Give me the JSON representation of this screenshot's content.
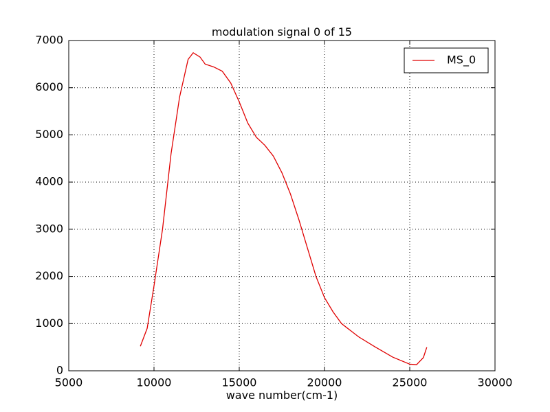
{
  "chart_data": {
    "type": "line",
    "title": "modulation signal 0 of 15",
    "xlabel": "wave number(cm-1)",
    "x": [
      9200,
      9600,
      10000,
      10500,
      11000,
      11500,
      12000,
      12300,
      12700,
      13000,
      13500,
      14000,
      14500,
      15000,
      15500,
      16000,
      16500,
      17000,
      17500,
      18000,
      18500,
      19000,
      19500,
      20000,
      20500,
      21000,
      22000,
      23000,
      24000,
      25000,
      25400,
      25800,
      26000
    ],
    "series": [
      {
        "name": "MS_0",
        "color": "#e00000",
        "values": [
          520,
          900,
          1800,
          3000,
          4600,
          5800,
          6600,
          6740,
          6650,
          6500,
          6440,
          6350,
          6100,
          5700,
          5250,
          4950,
          4780,
          4550,
          4200,
          3750,
          3200,
          2600,
          2000,
          1550,
          1250,
          1000,
          720,
          500,
          290,
          140,
          130,
          280,
          500
        ]
      }
    ],
    "xlim": [
      5000,
      30000
    ],
    "xticks": [
      5000,
      10000,
      15000,
      20000,
      25000,
      30000
    ],
    "ylim": [
      0,
      7000
    ],
    "yticks": [
      0,
      1000,
      2000,
      3000,
      4000,
      5000,
      6000,
      7000
    ],
    "grid": true,
    "legend": "upper right"
  }
}
